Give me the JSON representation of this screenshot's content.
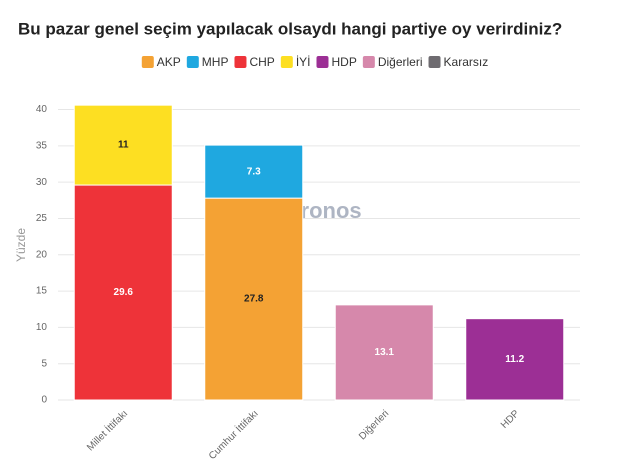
{
  "chart_data": {
    "type": "stacked_bar",
    "title": "Bu pazar genel seçim yapılacak olsaydı hangi partiye oy verirdiniz?",
    "y_label": "Yüzde",
    "watermark": "kronos",
    "categories": [
      "Millet İttifakı",
      "Cumhur İttifakı",
      "Diğerleri",
      "HDP"
    ],
    "series": [
      {
        "name": "AKP",
        "color": "#f4a234",
        "values": [
          null,
          27.8,
          null,
          null
        ]
      },
      {
        "name": "MHP",
        "color": "#1fa8e0",
        "values": [
          null,
          7.3,
          null,
          null
        ]
      },
      {
        "name": "CHP",
        "color": "#ee3339",
        "values": [
          29.6,
          null,
          null,
          null
        ]
      },
      {
        "name": "İYİ",
        "color": "#fddf22",
        "values": [
          11,
          null,
          null,
          null
        ]
      },
      {
        "name": "HDP",
        "color": "#9c2f95",
        "values": [
          null,
          null,
          null,
          11.2
        ]
      },
      {
        "name": "Diğerleri",
        "color": "#d688ab",
        "values": [
          null,
          null,
          13.1,
          null
        ]
      },
      {
        "name": "Kararsız",
        "color": "#6e6b70",
        "values": [
          null,
          null,
          null,
          null
        ]
      }
    ],
    "ylim": [
      0,
      42
    ],
    "yticks": [
      0,
      5,
      10,
      15,
      20,
      25,
      30,
      35,
      40
    ],
    "grid": true
  }
}
